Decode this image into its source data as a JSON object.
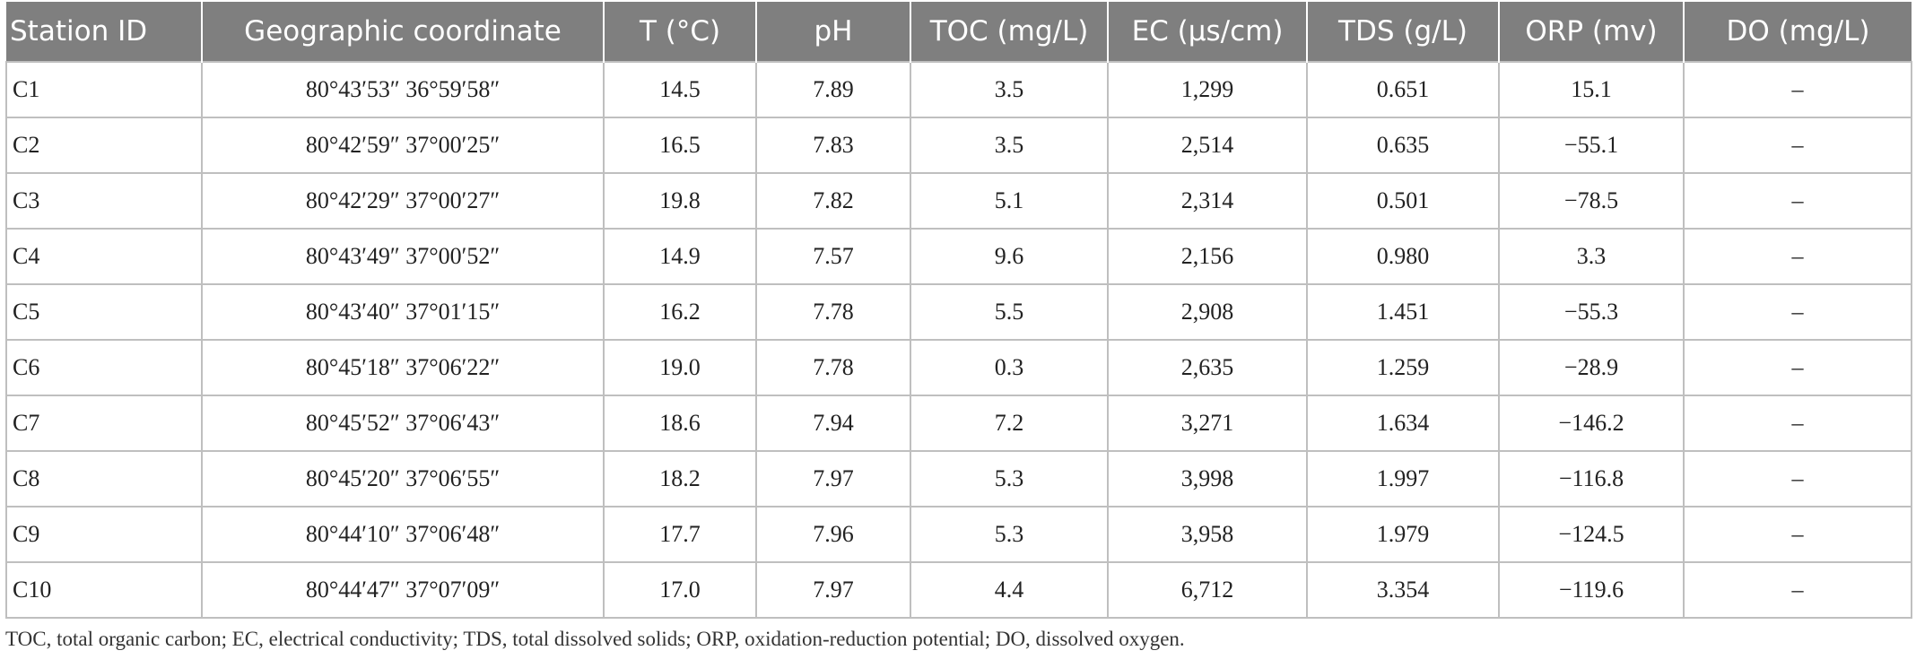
{
  "table": {
    "headers": [
      "Station ID",
      "Geographic coordinate",
      "T (°C)",
      "pH",
      "TOC (mg/L)",
      "EC (μs/cm)",
      "TDS (g/L)",
      "ORP (mv)",
      "DO (mg/L)"
    ],
    "rows": [
      [
        "C1",
        "80°43′53″ 36°59′58″",
        "14.5",
        "7.89",
        "3.5",
        "1,299",
        "0.651",
        "15.1",
        "–"
      ],
      [
        "C2",
        "80°42′59″ 37°00′25″",
        "16.5",
        "7.83",
        "3.5",
        "2,514",
        "0.635",
        "−55.1",
        "–"
      ],
      [
        "C3",
        "80°42′29″ 37°00′27″",
        "19.8",
        "7.82",
        "5.1",
        "2,314",
        "0.501",
        "−78.5",
        "–"
      ],
      [
        "C4",
        "80°43′49″ 37°00′52″",
        "14.9",
        "7.57",
        "9.6",
        "2,156",
        "0.980",
        "3.3",
        "–"
      ],
      [
        "C5",
        "80°43′40″ 37°01′15″",
        "16.2",
        "7.78",
        "5.5",
        "2,908",
        "1.451",
        "−55.3",
        "–"
      ],
      [
        "C6",
        "80°45′18″ 37°06′22″",
        "19.0",
        "7.78",
        "0.3",
        "2,635",
        "1.259",
        "−28.9",
        "–"
      ],
      [
        "C7",
        "80°45′52″ 37°06′43″",
        "18.6",
        "7.94",
        "7.2",
        "3,271",
        "1.634",
        "−146.2",
        "–"
      ],
      [
        "C8",
        "80°45′20″ 37°06′55″",
        "18.2",
        "7.97",
        "5.3",
        "3,998",
        "1.997",
        "−116.8",
        "–"
      ],
      [
        "C9",
        "80°44′10″ 37°06′48″",
        "17.7",
        "7.96",
        "5.3",
        "3,958",
        "1.979",
        "−124.5",
        "–"
      ],
      [
        "C10",
        "80°44′47″ 37°07′09″",
        "17.0",
        "7.97",
        "4.4",
        "6,712",
        "3.354",
        "−119.6",
        "–"
      ]
    ]
  },
  "footnote": "TOC, total organic carbon; EC, electrical conductivity; TDS, total dissolved solids; ORP, oxidation-reduction potential; DO, dissolved oxygen.",
  "colors": {
    "header_bg": "#7f7f7f",
    "header_text": "#ffffff",
    "grid": "#bfbfbf"
  }
}
